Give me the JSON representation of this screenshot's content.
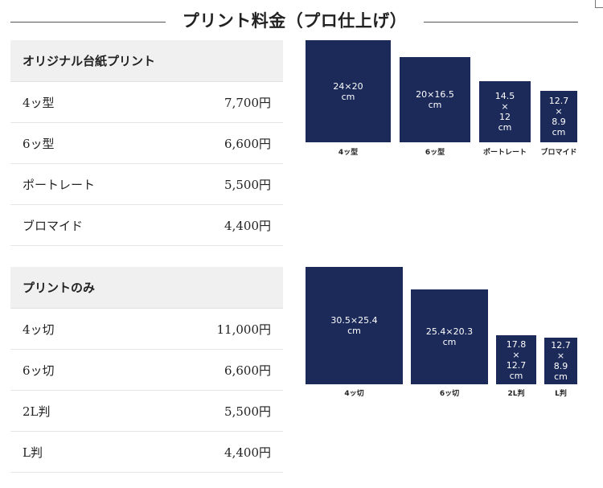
{
  "page": {
    "title": "プリント料金（プロ仕上げ）"
  },
  "section1": {
    "heading": "オリジナル台紙プリント",
    "rows": [
      {
        "name": "4ッ型",
        "price": "7,700円"
      },
      {
        "name": "6ッ型",
        "price": "6,600円"
      },
      {
        "name": "ポートレート",
        "price": "5,500円"
      },
      {
        "name": "ブロマイド",
        "price": "4,400円"
      }
    ],
    "diagram": [
      {
        "size_line1": "24×20",
        "size_line2": "cm",
        "size_line3": "",
        "label": "4ッ型"
      },
      {
        "size_line1": "20×16.5",
        "size_line2": "cm",
        "size_line3": "",
        "label": "6ッ型"
      },
      {
        "size_line1": "14.5",
        "size_line2": "×",
        "size_line3": "12",
        "size_line4": "cm",
        "label": "ポートレート"
      },
      {
        "size_line1": "12.7",
        "size_line2": "×",
        "size_line3": "8.9",
        "size_line4": "cm",
        "label": "ブロマイド"
      }
    ]
  },
  "section2": {
    "heading": "プリントのみ",
    "rows": [
      {
        "name": "4ッ切",
        "price": "11,000円"
      },
      {
        "name": "6ッ切",
        "price": "6,600円"
      },
      {
        "name": "2L判",
        "price": "5,500円"
      },
      {
        "name": "L判",
        "price": "4,400円"
      }
    ],
    "diagram": [
      {
        "size_line1": "30.5×25.4",
        "size_line2": "cm",
        "size_line3": "",
        "label": "4ッ切"
      },
      {
        "size_line1": "25.4×20.3",
        "size_line2": "cm",
        "size_line3": "",
        "label": "6ッ切"
      },
      {
        "size_line1": "17.8",
        "size_line2": "×",
        "size_line3": "12.7",
        "size_line4": "cm",
        "label": "2L判"
      },
      {
        "size_line1": "12.7",
        "size_line2": "×",
        "size_line3": "8.9",
        "size_line4": "cm",
        "label": "L判"
      }
    ]
  },
  "colors": {
    "diagram_fill": "#1c2a5a",
    "header_bg": "#f0f0f0"
  }
}
